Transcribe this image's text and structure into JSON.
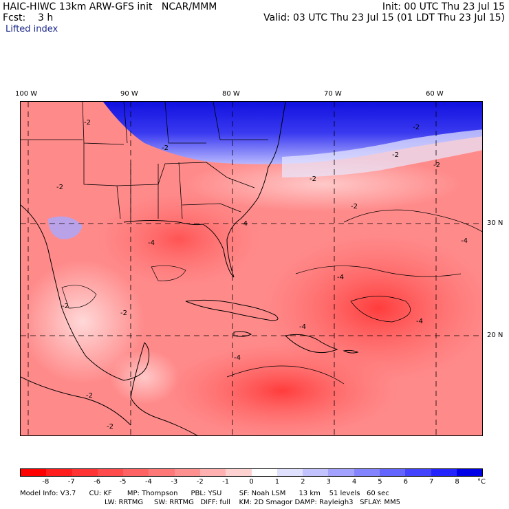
{
  "header": {
    "title": "HAIC-HIWC 13km ARW-GFS init   NCAR/MMM",
    "init": "Init: 00 UTC Thu 23 Jul 15",
    "fcst": "Fcst:    3 h",
    "valid": "Valid: 03 UTC Thu 23 Jul 15 (01 LDT Thu 23 Jul 15)",
    "field": "Lifted index"
  },
  "map": {
    "lon_labels": [
      "100 W",
      "90 W",
      "80 W",
      "70 W",
      "60 W"
    ],
    "lat_labels": [
      "30 N",
      "20 N"
    ],
    "contour_labels": [
      "-2",
      "-4"
    ]
  },
  "colorbar": {
    "ticks": [
      "-8",
      "-7",
      "-6",
      "-5",
      "-4",
      "-3",
      "-2",
      "-1",
      "0",
      "1",
      "2",
      "3",
      "4",
      "5",
      "6",
      "7",
      "8"
    ],
    "unit": "°C",
    "colors": [
      "#ff0000",
      "#ff1d1d",
      "#ff3333",
      "#ff4b4b",
      "#ff6262",
      "#ff7878",
      "#ff9090",
      "#ffb0b0",
      "#ffd2d2",
      "#ffffff",
      "#e0e0ff",
      "#c2c2ff",
      "#a3a3ff",
      "#8484ff",
      "#6464ff",
      "#4444ff",
      "#2424ff",
      "#0000e6"
    ]
  },
  "footer": {
    "line1": "Model Info: V3.7      CU: KF       MP: Thompson      PBL: YSU        SF: Noah LSM      13 km    51 levels   60 sec",
    "line2": "LW: RRTMG     SW: RRTMG   DIFF: full    KM: 2D Smagor DAMP: Rayleigh3   SFLAY: MM5"
  }
}
